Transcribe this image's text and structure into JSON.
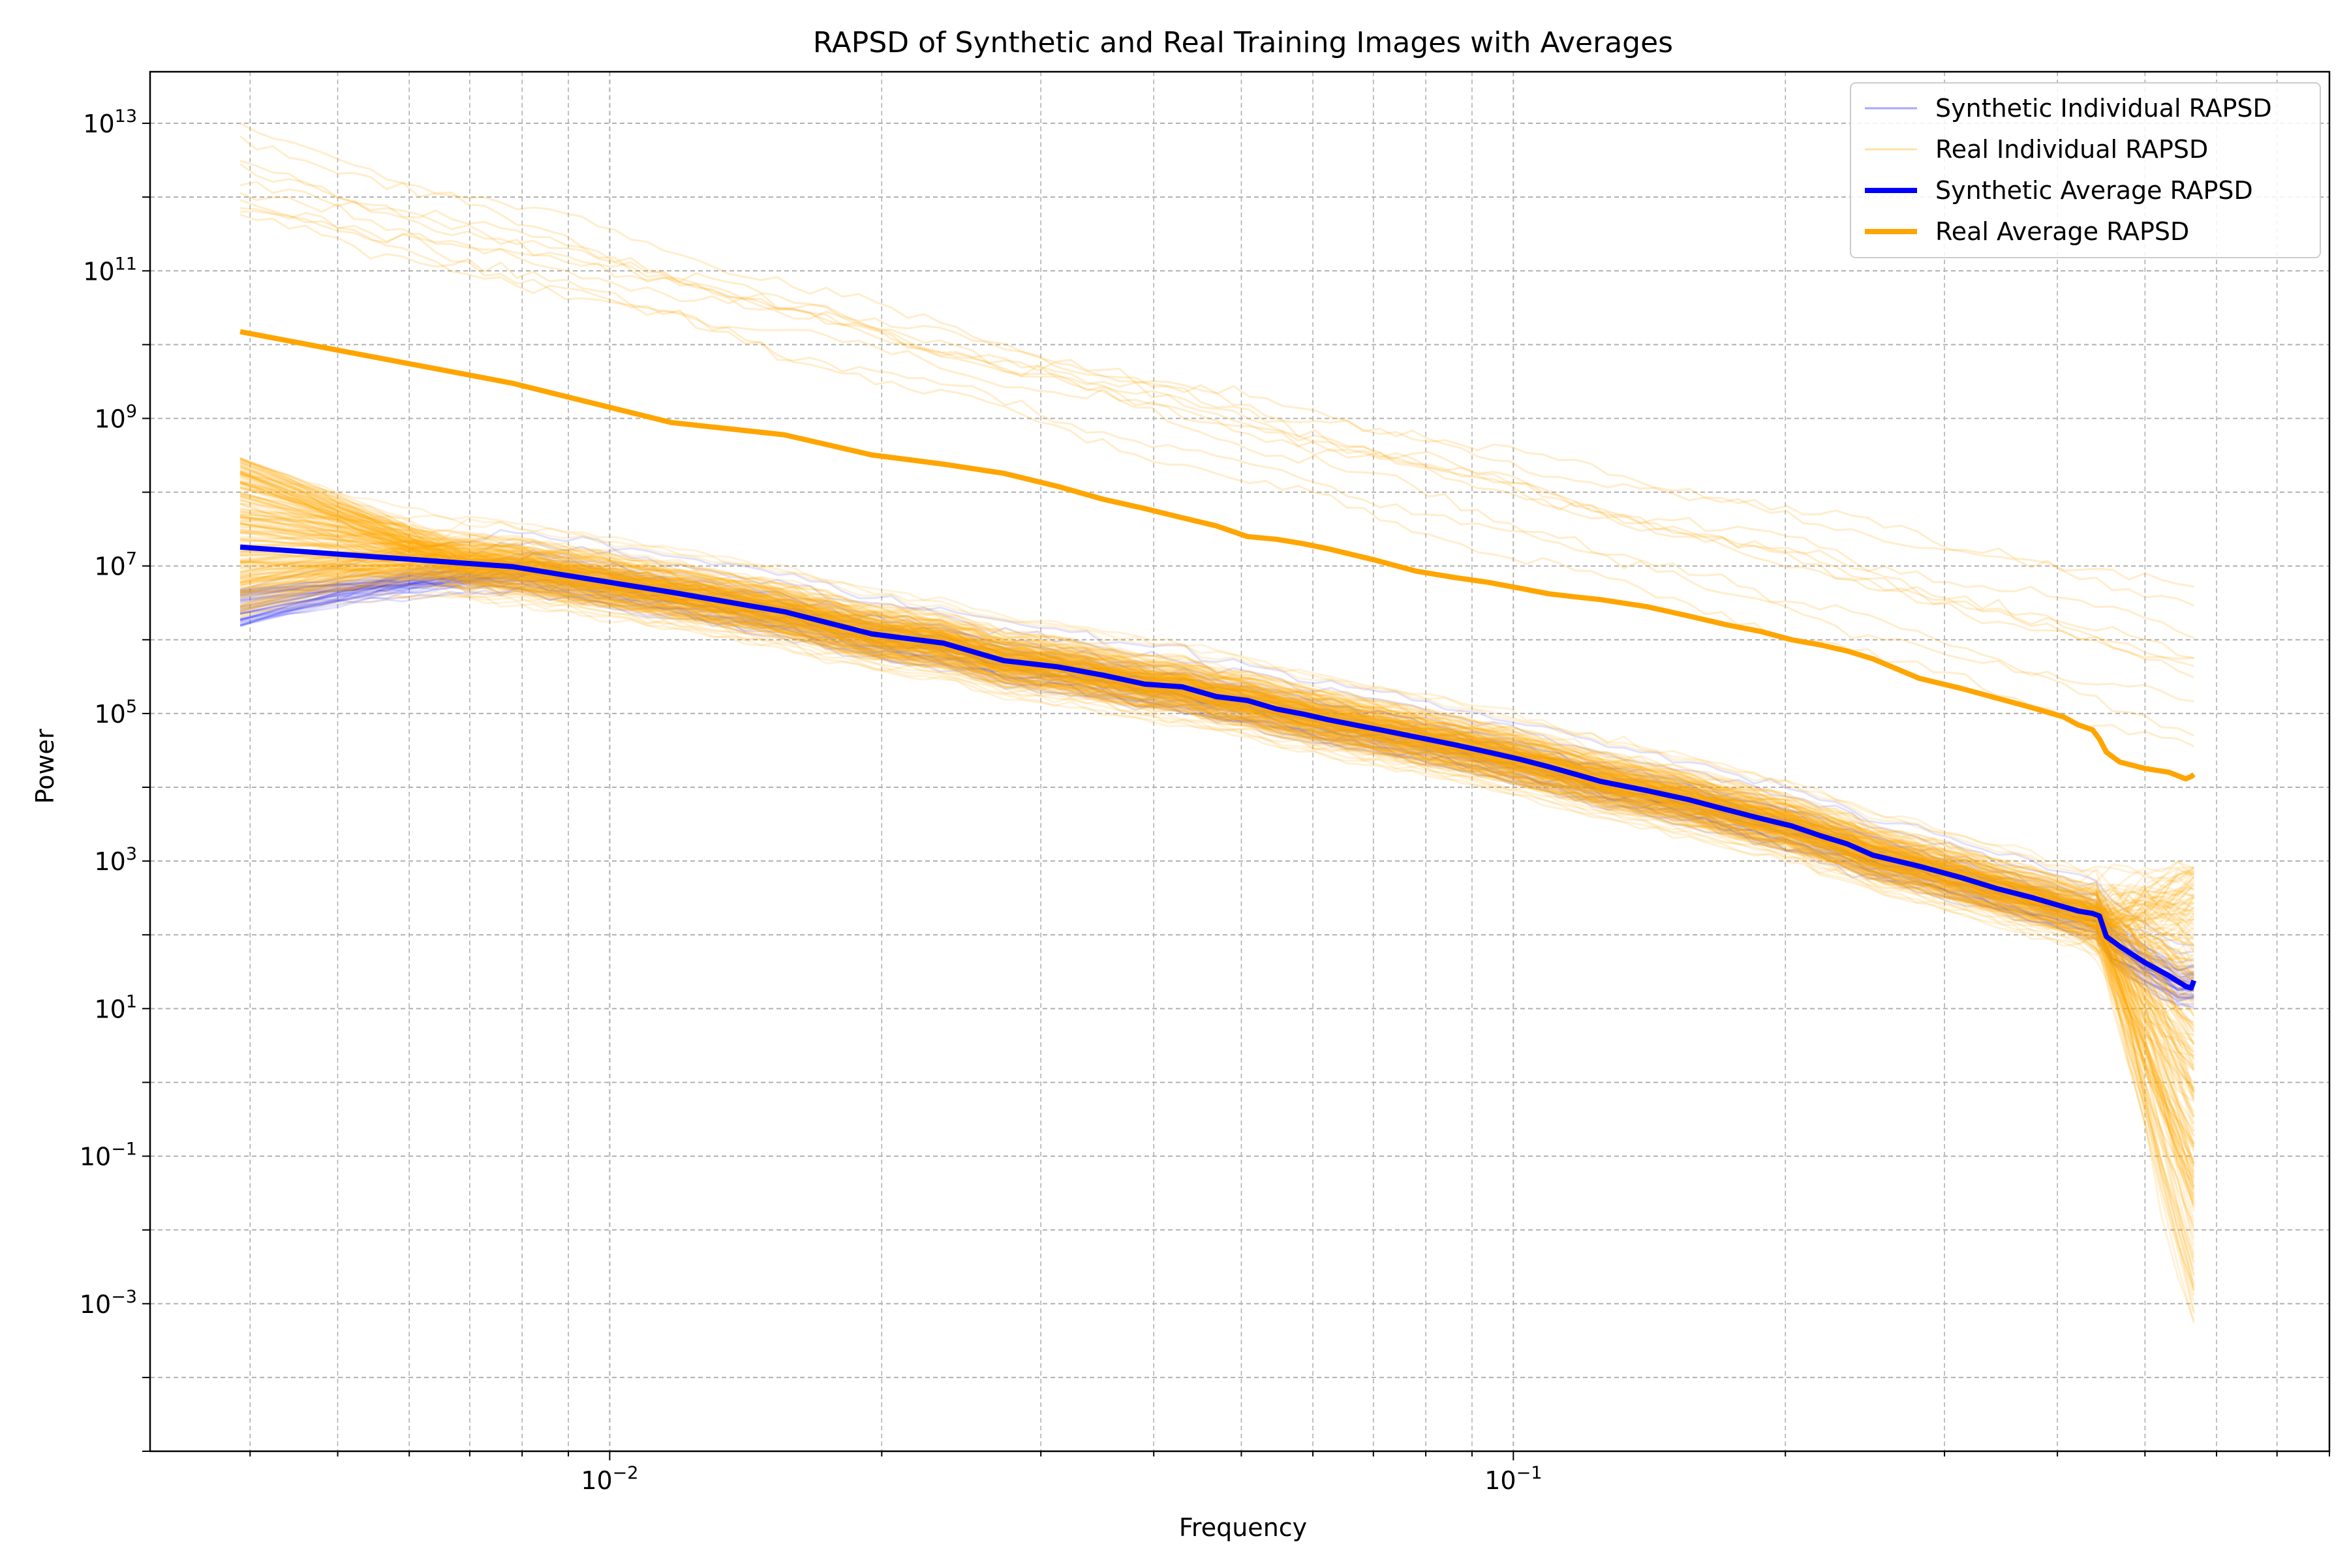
{
  "chart_data": {
    "type": "line",
    "title": "RAPSD of Synthetic and Real Training Images with Averages",
    "xlabel": "Frequency",
    "ylabel": "Power",
    "xscale": "log",
    "yscale": "log",
    "xlim": [
      0.0031,
      0.8
    ],
    "ylim": [
      1e-05,
      50000000000000
    ],
    "grid": "both (major and minor, dashed)",
    "legend_position": "top-right",
    "x_ticks": [
      {
        "value": 0.01,
        "base": "10",
        "exp": "−2"
      },
      {
        "value": 0.1,
        "base": "10",
        "exp": "−1"
      }
    ],
    "y_ticks": [
      {
        "value": 10000000000000,
        "base": "10",
        "exp": "13"
      },
      {
        "value": 100000000000,
        "base": "10",
        "exp": "11"
      },
      {
        "value": 1000000000,
        "base": "10",
        "exp": "9"
      },
      {
        "value": 10000000,
        "base": "10",
        "exp": "7"
      },
      {
        "value": 100000,
        "base": "10",
        "exp": "5"
      },
      {
        "value": 1000,
        "base": "10",
        "exp": "3"
      },
      {
        "value": 10,
        "base": "10",
        "exp": "1"
      },
      {
        "value": 0.1,
        "base": "10",
        "exp": "−1"
      },
      {
        "value": 0.001,
        "base": "10",
        "exp": "−3"
      }
    ],
    "legend": [
      "Synthetic Individual RAPSD",
      "Real Individual RAPSD",
      "Synthetic Average RAPSD",
      "Real Average RAPSD"
    ],
    "colors": {
      "synthetic": "#0000ff",
      "real": "#ffa500"
    },
    "series": [
      {
        "name": "Synthetic Average RAPSD",
        "kind": "average",
        "x": [
          0.0039,
          0.0078,
          0.0117,
          0.0156,
          0.0195,
          0.0234,
          0.0273,
          0.0313,
          0.0352,
          0.0391,
          0.043,
          0.0469,
          0.0508,
          0.0547,
          0.0586,
          0.0625,
          0.0703,
          0.0781,
          0.0859,
          0.0938,
          0.1016,
          0.1094,
          0.1172,
          0.125,
          0.1406,
          0.1563,
          0.1719,
          0.1875,
          0.2031,
          0.2188,
          0.2344,
          0.25,
          0.2813,
          0.3125,
          0.3438,
          0.375,
          0.4063,
          0.4219,
          0.4375,
          0.4453,
          0.4531,
          0.4688,
          0.5,
          0.5313,
          0.5547,
          0.5625,
          0.5664
        ],
        "y": [
          18000000,
          9800000,
          4400000,
          2400000,
          1200000,
          900000,
          520000,
          430000,
          330000,
          250000,
          230000,
          170000,
          150000,
          115000,
          98000,
          82000,
          62000,
          48000,
          38000,
          30000,
          24000,
          19000,
          15000,
          12000,
          9000,
          6800,
          5000,
          3800,
          3000,
          2200,
          1700,
          1200,
          850,
          600,
          420,
          320,
          240,
          210,
          195,
          180,
          95,
          70,
          42,
          28,
          20,
          19,
          24
        ]
      },
      {
        "name": "Real Average RAPSD",
        "kind": "average",
        "x": [
          0.0039,
          0.0078,
          0.0117,
          0.0156,
          0.0195,
          0.0234,
          0.0273,
          0.0313,
          0.0352,
          0.0391,
          0.043,
          0.0469,
          0.0508,
          0.0547,
          0.0586,
          0.0625,
          0.0703,
          0.0781,
          0.0859,
          0.0938,
          0.1016,
          0.1094,
          0.1172,
          0.125,
          0.1406,
          0.1563,
          0.1719,
          0.1875,
          0.2031,
          0.2188,
          0.2344,
          0.25,
          0.2813,
          0.3125,
          0.3438,
          0.375,
          0.4063,
          0.4219,
          0.4375,
          0.4453,
          0.4531,
          0.4688,
          0.5,
          0.5313,
          0.5547,
          0.5625,
          0.5664
        ],
        "y": [
          15000000000,
          3000000000,
          880000000,
          600000000,
          320000000,
          240000000,
          180000000,
          120000000,
          80000000,
          60000000,
          45000000,
          35000000,
          25000000,
          23000000,
          20000000,
          17000000,
          12000000,
          8500000,
          7000000,
          6000000,
          5000000,
          4200000,
          3800000,
          3500000,
          2800000,
          2100000,
          1600000,
          1300000,
          1000000,
          850000,
          700000,
          550000,
          300000,
          220000,
          160000,
          120000,
          90000,
          70000,
          60000,
          45000,
          30000,
          22000,
          18000,
          16000,
          13000,
          14000,
          15000
        ]
      }
    ],
    "individual_curves": {
      "synthetic": {
        "name": "Synthetic Individual RAPSD",
        "count_approx": 100,
        "low_freq_power_range": [
          1500000,
          5000000
        ],
        "note": "flat near 10^6–10^7 at low frequency then following the synthetic average, spread ~×3"
      },
      "real_upper": {
        "name": "Real Individual RAPSD",
        "low_freq_power_range": [
          500000000000,
          10000000000000
        ],
        "high_freq_power_range": [
          10000,
          30000000
        ]
      },
      "real_band": {
        "name": "Real Individual RAPSD",
        "low_freq_power_range": [
          2000000,
          300000000
        ],
        "high_freq_power_range": [
          0.0001,
          1000
        ],
        "note": "dense orange band overlapping the synthetic curves; drops sharply after x≈0.44"
      }
    }
  }
}
